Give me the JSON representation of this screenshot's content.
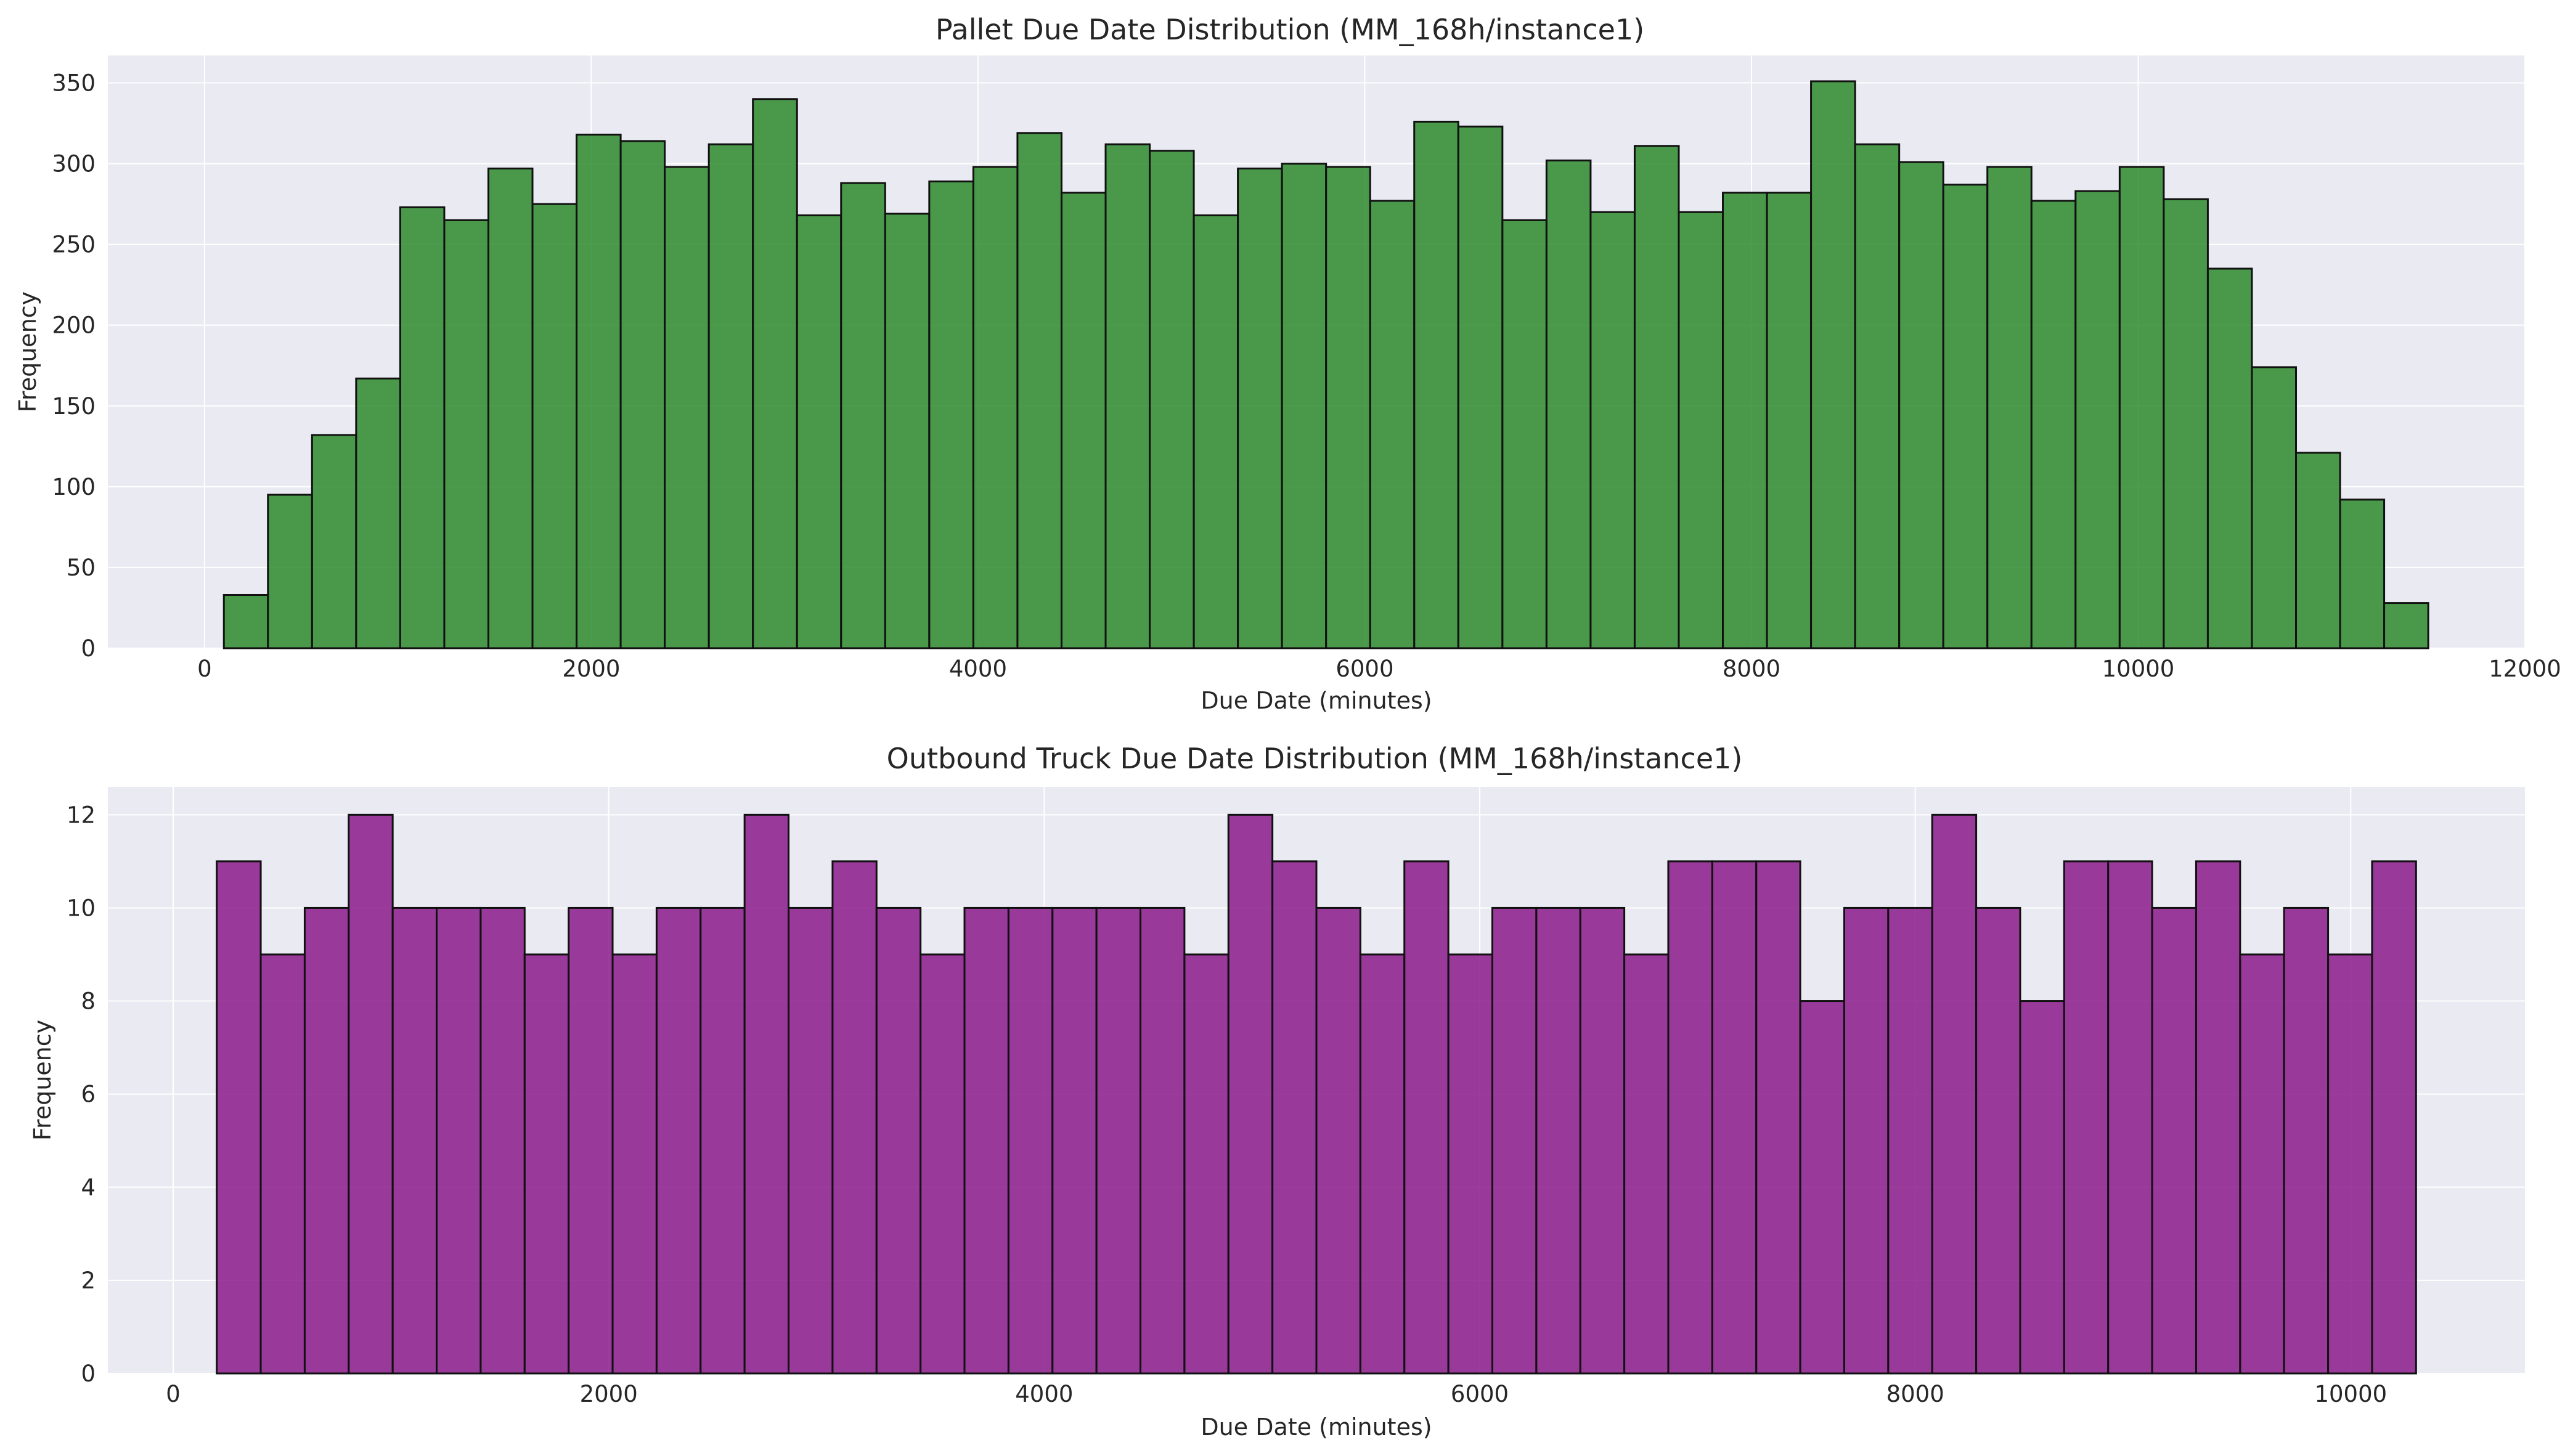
{
  "chart_data": [
    {
      "type": "histogram",
      "title": "Pallet Due Date Distribution (MM_168h/instance1)",
      "xlabel": "Due Date (minutes)",
      "ylabel": "Frequency",
      "xlim": [
        -500,
        12000
      ],
      "ylim": [
        0,
        367
      ],
      "xticks": [
        0,
        2000,
        4000,
        6000,
        8000,
        10000,
        12000
      ],
      "xtick_labels": [
        "0",
        "2000",
        "4000",
        "6000",
        "8000",
        "10000",
        "12000"
      ],
      "yticks": [
        0,
        50,
        100,
        150,
        200,
        250,
        300,
        350
      ],
      "ytick_labels": [
        "0",
        "50",
        "100",
        "150",
        "200",
        "250",
        "300",
        "350"
      ],
      "bin_start": 100,
      "bin_width": 228,
      "values": [
        33,
        95,
        132,
        167,
        273,
        265,
        297,
        275,
        318,
        314,
        298,
        312,
        340,
        268,
        288,
        269,
        289,
        298,
        319,
        282,
        312,
        308,
        268,
        297,
        300,
        298,
        277,
        326,
        323,
        265,
        302,
        270,
        311,
        270,
        282,
        282,
        351,
        312,
        301,
        287,
        298,
        277,
        283,
        298,
        278,
        235,
        174,
        121,
        92,
        28
      ],
      "bar_color": "#2e8b2e",
      "edge_color": "#111111",
      "grid": true
    },
    {
      "type": "histogram",
      "title": "Outbound Truck Due Date Distribution (MM_168h/instance1)",
      "xlabel": "Due Date (minutes)",
      "ylabel": "Frequency",
      "xlim": [
        -300,
        10800
      ],
      "ylim": [
        0,
        12.6
      ],
      "xticks": [
        0,
        2000,
        4000,
        6000,
        8000,
        10000
      ],
      "xtick_labels": [
        "0",
        "2000",
        "4000",
        "6000",
        "8000",
        "10000"
      ],
      "yticks": [
        0,
        2,
        4,
        6,
        8,
        10,
        12
      ],
      "ytick_labels": [
        "0",
        "2",
        "4",
        "6",
        "8",
        "10",
        "12"
      ],
      "bin_start": 200,
      "bin_width": 202,
      "values": [
        11,
        9,
        10,
        12,
        10,
        10,
        10,
        9,
        10,
        9,
        10,
        10,
        12,
        10,
        11,
        10,
        9,
        10,
        10,
        10,
        10,
        10,
        9,
        12,
        11,
        10,
        9,
        11,
        9,
        10,
        10,
        10,
        9,
        11,
        11,
        11,
        8,
        10,
        10,
        12,
        10,
        8,
        11,
        11,
        10,
        11,
        9,
        10,
        9,
        11
      ],
      "bar_color": "#8b1a8b",
      "edge_color": "#111111",
      "grid": true
    }
  ]
}
